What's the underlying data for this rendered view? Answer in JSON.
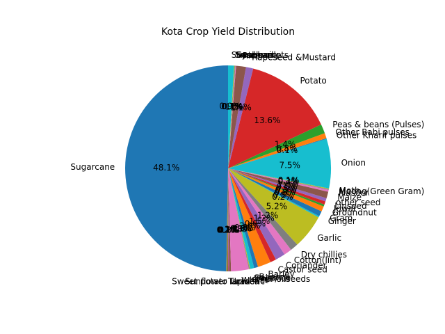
{
  "chart_data": {
    "type": "pie",
    "title": "Kota Crop Yield Distribution",
    "start_angle_deg": 90,
    "counterclock": true,
    "slices": [
      {
        "label": "Sugarcane",
        "value": 48.1,
        "pct_label": "48.1%",
        "color": "#1f77b4"
      },
      {
        "label": "Sunflower",
        "value": 0.1,
        "pct_label": "0.1%",
        "color": "#ff7f0e"
      },
      {
        "label": "Sweet potato",
        "value": 0.1,
        "pct_label": "0.1%",
        "color": "#2ca02c"
      },
      {
        "label": "Tapioca",
        "value": 0.1,
        "pct_label": "0.1%",
        "color": "#d62728"
      },
      {
        "label": "Turmeric",
        "value": 0.1,
        "pct_label": "0.1%",
        "color": "#9467bd"
      },
      {
        "label": "Urad",
        "value": 0.3,
        "pct_label": "0.3%",
        "color": "#8c564b"
      },
      {
        "label": "Wheat",
        "value": 2.7,
        "pct_label": "2.7%",
        "color": "#e377c2"
      },
      {
        "label": "other oilseeds",
        "value": 0.1,
        "pct_label": "0.1%",
        "color": "#7f7f7f"
      },
      {
        "label": "Arhar/Tur",
        "value": 0.1,
        "pct_label": "0.1%",
        "color": "#bcbd22"
      },
      {
        "label": "Bajra",
        "value": 0.6,
        "pct_label": "0.6%",
        "color": "#17becf"
      },
      {
        "label": "Banana",
        "value": 0.6,
        "pct_label": "0.6%",
        "color": "#1f77b4"
      },
      {
        "label": "Barley",
        "value": 2.0,
        "pct_label": "2.0%",
        "color": "#ff7f0e"
      },
      {
        "label": "Castor seed",
        "value": 0.9,
        "pct_label": "0.9%",
        "color": "#d62728"
      },
      {
        "label": "Coriander",
        "value": 1.5,
        "pct_label": "1.5%",
        "color": "#9467bd"
      },
      {
        "label": "Cotton(lint)",
        "value": 1.2,
        "pct_label": "1.2%",
        "color": "#e377c2"
      },
      {
        "label": "Dry chillies",
        "value": 1.2,
        "pct_label": "1.2%",
        "color": "#7f7f7f"
      },
      {
        "label": "Garlic",
        "value": 5.2,
        "pct_label": "5.2%",
        "color": "#bcbd22"
      },
      {
        "label": "Ginger",
        "value": 0.2,
        "pct_label": "0.2%",
        "color": "#17becf"
      },
      {
        "label": "Gram",
        "value": 0.8,
        "pct_label": "0.8%",
        "color": "#1f77b4"
      },
      {
        "label": "Groundnut",
        "value": 0.8,
        "pct_label": "0.8%",
        "color": "#ff7f0e"
      },
      {
        "label": "Jowar",
        "value": 0.3,
        "pct_label": "0.3%",
        "color": "#2ca02c"
      },
      {
        "label": "Linseed",
        "value": 0.5,
        "pct_label": "0.5%",
        "color": "#d62728"
      },
      {
        "label": "other seed",
        "value": 0.5,
        "pct_label": "0.5%",
        "color": "#9467bd"
      },
      {
        "label": "Maize",
        "value": 1.0,
        "pct_label": "1.0%",
        "color": "#8c564b"
      },
      {
        "label": "Masoor",
        "value": 0.3,
        "pct_label": "0.3%",
        "color": "#e377c2"
      },
      {
        "label": "Moong(Green Gram)",
        "value": 0.1,
        "pct_label": "0.1%",
        "color": "#7f7f7f"
      },
      {
        "label": "Moth",
        "value": 0.1,
        "pct_label": "0.1%",
        "color": "#bcbd22"
      },
      {
        "label": "Onion",
        "value": 7.5,
        "pct_label": "7.5%",
        "color": "#17becf"
      },
      {
        "label": "Other Kharif pulses",
        "value": 0.1,
        "pct_label": "0.1%",
        "color": "#1f77b4"
      },
      {
        "label": "Other Rabi pulses",
        "value": 0.8,
        "pct_label": "0.8%",
        "color": "#ff7f0e"
      },
      {
        "label": "Peas & beans (Pulses)",
        "value": 1.4,
        "pct_label": "1.4%",
        "color": "#2ca02c"
      },
      {
        "label": "Potato",
        "value": 13.6,
        "pct_label": "13.6%",
        "color": "#d62728"
      },
      {
        "label": "Rapeseed &Mustard",
        "value": 1.1,
        "pct_label": "1.1%",
        "color": "#9467bd"
      },
      {
        "label": "Rice",
        "value": 1.5,
        "pct_label": "1.5%",
        "color": "#8c564b"
      },
      {
        "label": "Sannhamp",
        "value": 0.1,
        "pct_label": "0.1%",
        "color": "#e377c2"
      },
      {
        "label": "Sesamum",
        "value": 0.1,
        "pct_label": "0.1%",
        "color": "#7f7f7f"
      },
      {
        "label": "Small millets",
        "value": 0.1,
        "pct_label": "0.1%",
        "color": "#bcbd22"
      },
      {
        "label": "Soyabean",
        "value": 0.9,
        "pct_label": "0.9%",
        "color": "#17becf"
      }
    ]
  }
}
